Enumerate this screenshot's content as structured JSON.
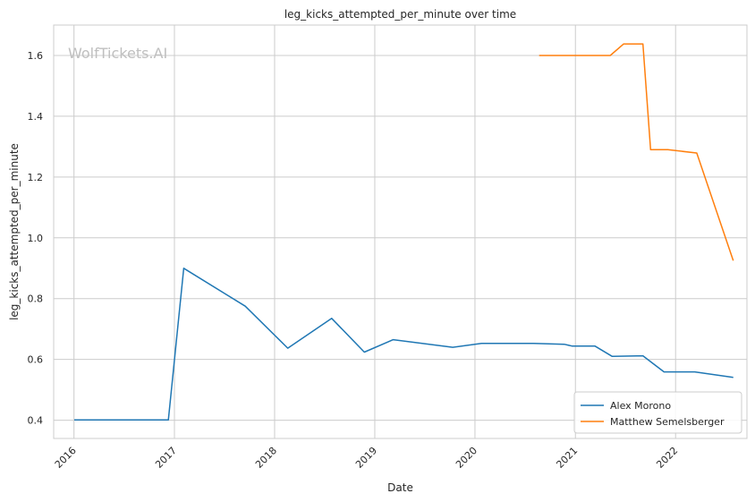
{
  "chart_data": {
    "type": "line",
    "title": "leg_kicks_attempted_per_minute over time",
    "xlabel": "Date",
    "ylabel": "leg_kicks_attempted_per_minute",
    "watermark": "WolfTickets.AI",
    "x_ticks": [
      "2016",
      "2017",
      "2018",
      "2019",
      "2020",
      "2021",
      "2022"
    ],
    "y_ticks": [
      "0.4",
      "0.6",
      "0.8",
      "1.0",
      "1.2",
      "1.4",
      "1.6"
    ],
    "xlim": [
      "2015-10-19",
      "2022-09-18"
    ],
    "ylim": [
      0.34,
      1.7
    ],
    "grid": true,
    "legend_position": "lower-right",
    "series": [
      {
        "name": "Alex Morono",
        "color": "#1f77b4",
        "points": [
          {
            "x": "2016-01-02",
            "y": 0.401
          },
          {
            "x": "2016-12-10",
            "y": 0.401
          },
          {
            "x": "2017-02-04",
            "y": 0.9
          },
          {
            "x": "2017-09-16",
            "y": 0.775
          },
          {
            "x": "2018-02-18",
            "y": 0.637
          },
          {
            "x": "2018-07-28",
            "y": 0.735
          },
          {
            "x": "2018-11-24",
            "y": 0.624
          },
          {
            "x": "2019-03-09",
            "y": 0.665
          },
          {
            "x": "2019-10-12",
            "y": 0.64
          },
          {
            "x": "2020-01-25",
            "y": 0.653
          },
          {
            "x": "2020-08-01",
            "y": 0.653
          },
          {
            "x": "2020-11-21",
            "y": 0.65
          },
          {
            "x": "2020-12-19",
            "y": 0.644
          },
          {
            "x": "2021-03-13",
            "y": 0.644
          },
          {
            "x": "2021-05-15",
            "y": 0.61
          },
          {
            "x": "2021-09-04",
            "y": 0.612
          },
          {
            "x": "2021-11-20",
            "y": 0.559
          },
          {
            "x": "2022-03-12",
            "y": 0.559
          },
          {
            "x": "2022-07-30",
            "y": 0.541
          }
        ]
      },
      {
        "name": "Matthew Semelsberger",
        "color": "#ff7f0e",
        "points": [
          {
            "x": "2020-08-22",
            "y": 1.6
          },
          {
            "x": "2021-05-08",
            "y": 1.6
          },
          {
            "x": "2021-06-26",
            "y": 1.638
          },
          {
            "x": "2021-09-04",
            "y": 1.638
          },
          {
            "x": "2021-10-02",
            "y": 1.29
          },
          {
            "x": "2021-12-04",
            "y": 1.29
          },
          {
            "x": "2022-03-19",
            "y": 1.279
          },
          {
            "x": "2022-07-30",
            "y": 0.925
          }
        ]
      }
    ]
  }
}
